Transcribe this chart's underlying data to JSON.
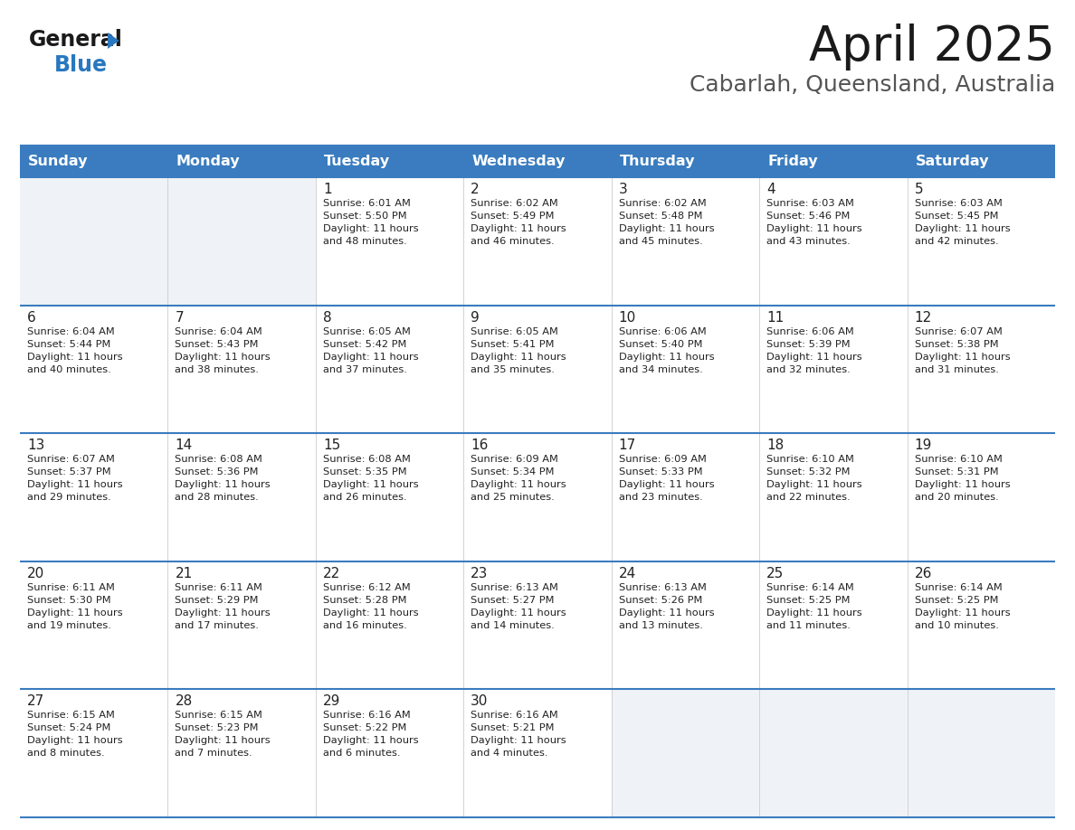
{
  "title": "April 2025",
  "subtitle": "Cabarlah, Queensland, Australia",
  "header_bg": "#3a7cbf",
  "header_text_color": "#ffffff",
  "cell_bg_white": "#ffffff",
  "cell_bg_gray": "#eff3f7",
  "border_color": "#3a7cbf",
  "text_color": "#222222",
  "days_of_week": [
    "Sunday",
    "Monday",
    "Tuesday",
    "Wednesday",
    "Thursday",
    "Friday",
    "Saturday"
  ],
  "weeks": [
    [
      {
        "day": null,
        "info": null
      },
      {
        "day": null,
        "info": null
      },
      {
        "day": "1",
        "info": "Sunrise: 6:01 AM\nSunset: 5:50 PM\nDaylight: 11 hours\nand 48 minutes."
      },
      {
        "day": "2",
        "info": "Sunrise: 6:02 AM\nSunset: 5:49 PM\nDaylight: 11 hours\nand 46 minutes."
      },
      {
        "day": "3",
        "info": "Sunrise: 6:02 AM\nSunset: 5:48 PM\nDaylight: 11 hours\nand 45 minutes."
      },
      {
        "day": "4",
        "info": "Sunrise: 6:03 AM\nSunset: 5:46 PM\nDaylight: 11 hours\nand 43 minutes."
      },
      {
        "day": "5",
        "info": "Sunrise: 6:03 AM\nSunset: 5:45 PM\nDaylight: 11 hours\nand 42 minutes."
      }
    ],
    [
      {
        "day": "6",
        "info": "Sunrise: 6:04 AM\nSunset: 5:44 PM\nDaylight: 11 hours\nand 40 minutes."
      },
      {
        "day": "7",
        "info": "Sunrise: 6:04 AM\nSunset: 5:43 PM\nDaylight: 11 hours\nand 38 minutes."
      },
      {
        "day": "8",
        "info": "Sunrise: 6:05 AM\nSunset: 5:42 PM\nDaylight: 11 hours\nand 37 minutes."
      },
      {
        "day": "9",
        "info": "Sunrise: 6:05 AM\nSunset: 5:41 PM\nDaylight: 11 hours\nand 35 minutes."
      },
      {
        "day": "10",
        "info": "Sunrise: 6:06 AM\nSunset: 5:40 PM\nDaylight: 11 hours\nand 34 minutes."
      },
      {
        "day": "11",
        "info": "Sunrise: 6:06 AM\nSunset: 5:39 PM\nDaylight: 11 hours\nand 32 minutes."
      },
      {
        "day": "12",
        "info": "Sunrise: 6:07 AM\nSunset: 5:38 PM\nDaylight: 11 hours\nand 31 minutes."
      }
    ],
    [
      {
        "day": "13",
        "info": "Sunrise: 6:07 AM\nSunset: 5:37 PM\nDaylight: 11 hours\nand 29 minutes."
      },
      {
        "day": "14",
        "info": "Sunrise: 6:08 AM\nSunset: 5:36 PM\nDaylight: 11 hours\nand 28 minutes."
      },
      {
        "day": "15",
        "info": "Sunrise: 6:08 AM\nSunset: 5:35 PM\nDaylight: 11 hours\nand 26 minutes."
      },
      {
        "day": "16",
        "info": "Sunrise: 6:09 AM\nSunset: 5:34 PM\nDaylight: 11 hours\nand 25 minutes."
      },
      {
        "day": "17",
        "info": "Sunrise: 6:09 AM\nSunset: 5:33 PM\nDaylight: 11 hours\nand 23 minutes."
      },
      {
        "day": "18",
        "info": "Sunrise: 6:10 AM\nSunset: 5:32 PM\nDaylight: 11 hours\nand 22 minutes."
      },
      {
        "day": "19",
        "info": "Sunrise: 6:10 AM\nSunset: 5:31 PM\nDaylight: 11 hours\nand 20 minutes."
      }
    ],
    [
      {
        "day": "20",
        "info": "Sunrise: 6:11 AM\nSunset: 5:30 PM\nDaylight: 11 hours\nand 19 minutes."
      },
      {
        "day": "21",
        "info": "Sunrise: 6:11 AM\nSunset: 5:29 PM\nDaylight: 11 hours\nand 17 minutes."
      },
      {
        "day": "22",
        "info": "Sunrise: 6:12 AM\nSunset: 5:28 PM\nDaylight: 11 hours\nand 16 minutes."
      },
      {
        "day": "23",
        "info": "Sunrise: 6:13 AM\nSunset: 5:27 PM\nDaylight: 11 hours\nand 14 minutes."
      },
      {
        "day": "24",
        "info": "Sunrise: 6:13 AM\nSunset: 5:26 PM\nDaylight: 11 hours\nand 13 minutes."
      },
      {
        "day": "25",
        "info": "Sunrise: 6:14 AM\nSunset: 5:25 PM\nDaylight: 11 hours\nand 11 minutes."
      },
      {
        "day": "26",
        "info": "Sunrise: 6:14 AM\nSunset: 5:25 PM\nDaylight: 11 hours\nand 10 minutes."
      }
    ],
    [
      {
        "day": "27",
        "info": "Sunrise: 6:15 AM\nSunset: 5:24 PM\nDaylight: 11 hours\nand 8 minutes."
      },
      {
        "day": "28",
        "info": "Sunrise: 6:15 AM\nSunset: 5:23 PM\nDaylight: 11 hours\nand 7 minutes."
      },
      {
        "day": "29",
        "info": "Sunrise: 6:16 AM\nSunset: 5:22 PM\nDaylight: 11 hours\nand 6 minutes."
      },
      {
        "day": "30",
        "info": "Sunrise: 6:16 AM\nSunset: 5:21 PM\nDaylight: 11 hours\nand 4 minutes."
      },
      {
        "day": null,
        "info": null
      },
      {
        "day": null,
        "info": null
      },
      {
        "day": null,
        "info": null
      }
    ]
  ]
}
